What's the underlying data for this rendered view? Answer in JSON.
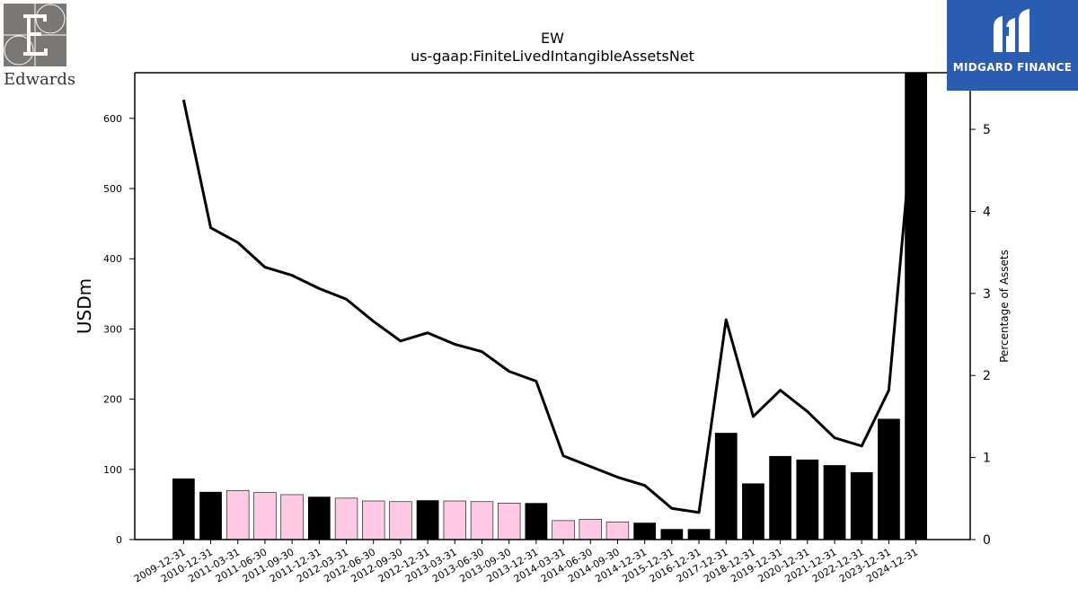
{
  "company": {
    "ticker": "EW",
    "logo_name": "Edwards",
    "logo_icon": "edwards-e-logo-icon"
  },
  "brand": {
    "name": "MIDGARD FINANCE",
    "logo_icon": "midgard-logo-icon",
    "color": "#2a5db0"
  },
  "chart_data": {
    "type": "bar",
    "title": "EW",
    "subtitle": "us-gaap:FiniteLivedIntangibleAssetsNet",
    "ylabel": "USDm",
    "y2label": "Percentage of Assets",
    "ylim": [
      0,
      665
    ],
    "y2lim": [
      0,
      5.69
    ],
    "yticks": [
      0,
      100,
      200,
      300,
      400,
      500,
      600
    ],
    "y2ticks": [
      0,
      1,
      2,
      3,
      4,
      5
    ],
    "categories": [
      "2009-12-31",
      "2010-12-31",
      "2011-03-31",
      "2011-06-30",
      "2011-09-30",
      "2011-12-31",
      "2012-03-31",
      "2012-06-30",
      "2012-09-30",
      "2012-12-31",
      "2013-03-31",
      "2013-06-30",
      "2013-09-30",
      "2013-12-31",
      "2014-03-31",
      "2014-06-30",
      "2014-09-30",
      "2014-12-31",
      "2015-12-31",
      "2016-12-31",
      "2017-12-31",
      "2018-12-31",
      "2019-12-31",
      "2020-12-31",
      "2021-12-31",
      "2022-12-31",
      "2023-12-31",
      "2024-12-31"
    ],
    "bar_colors": {
      "annual": "#000000",
      "quarterly": "#ffc9e6"
    },
    "series": [
      {
        "values": [
          87,
          68,
          70,
          67,
          64,
          61,
          59,
          55,
          54,
          56,
          55,
          54,
          52,
          52,
          27,
          29,
          25,
          24,
          15,
          15,
          152,
          80,
          119,
          114,
          106,
          96,
          172,
          665
        ],
        "period_type": [
          "annual",
          "annual",
          "quarterly",
          "quarterly",
          "quarterly",
          "annual",
          "quarterly",
          "quarterly",
          "quarterly",
          "annual",
          "quarterly",
          "quarterly",
          "quarterly",
          "annual",
          "quarterly",
          "quarterly",
          "quarterly",
          "annual",
          "annual",
          "annual",
          "annual",
          "annual",
          "annual",
          "annual",
          "annual",
          "annual",
          "annual",
          "annual"
        ]
      },
      {
        "axis": "right",
        "type": "line",
        "color": "#000000",
        "values": [
          5.36,
          3.8,
          3.62,
          3.32,
          3.22,
          3.06,
          2.93,
          2.66,
          2.42,
          2.52,
          2.38,
          2.29,
          2.05,
          1.93,
          1.02,
          0.89,
          0.76,
          0.66,
          0.38,
          0.33,
          2.68,
          1.5,
          1.82,
          1.56,
          1.24,
          1.14,
          1.82,
          5.5
        ]
      }
    ]
  }
}
